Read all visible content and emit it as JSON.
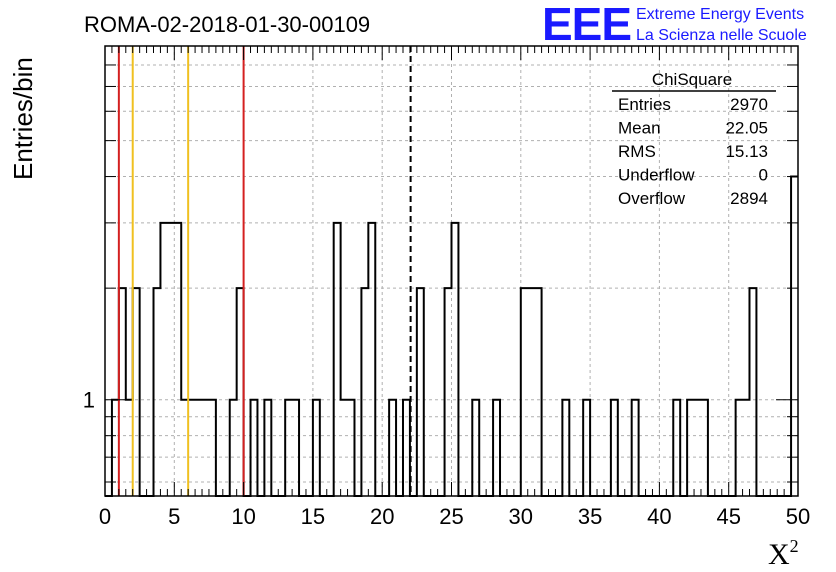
{
  "chart_data": {
    "type": "histogram",
    "title": "ROMA-02-2018-01-30-00109",
    "xlabel": "X",
    "xlabel_superscript": "2",
    "ylabel": "Entries/bin",
    "xlim": [
      0,
      50
    ],
    "ylim": [
      0.55,
      9
    ],
    "yscale": "log",
    "grid": true,
    "bin_width": 0.5,
    "x_ticks": [
      "0",
      "5",
      "10",
      "15",
      "20",
      "25",
      "30",
      "35",
      "40",
      "45",
      "50"
    ],
    "y_ticks": [
      "1"
    ],
    "bins": [
      [
        0.5,
        1
      ],
      [
        1.0,
        2
      ],
      [
        1.5,
        1
      ],
      [
        2.0,
        2
      ],
      [
        3.5,
        2
      ],
      [
        4.0,
        3
      ],
      [
        4.5,
        3
      ],
      [
        5.0,
        3
      ],
      [
        5.5,
        1
      ],
      [
        6.0,
        1
      ],
      [
        6.5,
        1
      ],
      [
        7.0,
        1
      ],
      [
        7.5,
        1
      ],
      [
        9.0,
        1
      ],
      [
        9.5,
        2
      ],
      [
        10.5,
        1
      ],
      [
        11.5,
        1
      ],
      [
        13.0,
        1
      ],
      [
        13.5,
        1
      ],
      [
        15.0,
        1
      ],
      [
        16.5,
        3
      ],
      [
        17.0,
        1
      ],
      [
        17.5,
        1
      ],
      [
        18.5,
        2
      ],
      [
        19.0,
        3
      ],
      [
        20.5,
        1
      ],
      [
        21.5,
        1
      ],
      [
        22.5,
        2
      ],
      [
        24.5,
        2
      ],
      [
        25.0,
        3
      ],
      [
        26.5,
        1
      ],
      [
        28.0,
        1
      ],
      [
        30.0,
        2
      ],
      [
        30.5,
        2
      ],
      [
        31.0,
        2
      ],
      [
        33.0,
        1
      ],
      [
        34.5,
        1
      ],
      [
        36.5,
        1
      ],
      [
        38.0,
        1
      ],
      [
        41.0,
        1
      ],
      [
        42.0,
        1
      ],
      [
        42.5,
        1
      ],
      [
        43.0,
        1
      ],
      [
        45.5,
        1
      ],
      [
        46.0,
        1
      ],
      [
        46.5,
        2
      ],
      [
        49.5,
        4
      ]
    ],
    "vertical_lines": [
      {
        "x": 1.0,
        "color": "#d42020",
        "style": "solid"
      },
      {
        "x": 2.0,
        "color": "#f0c020",
        "style": "solid"
      },
      {
        "x": 6.0,
        "color": "#f0c020",
        "style": "solid"
      },
      {
        "x": 10.0,
        "color": "#d42020",
        "style": "solid"
      },
      {
        "x": 22.05,
        "color": "#000000",
        "style": "dashed"
      }
    ],
    "stats": {
      "name": "ChiSquare",
      "rows": [
        {
          "label": "Entries",
          "value": "2970"
        },
        {
          "label": "Mean",
          "value": "22.05"
        },
        {
          "label": "RMS",
          "value": "15.13"
        },
        {
          "label": "Underflow",
          "value": "0"
        },
        {
          "label": "Overflow",
          "value": "2894"
        }
      ]
    }
  },
  "logo": {
    "text": "EEE",
    "line1": "Extreme Energy Events",
    "line2": "La Scienza nelle Scuole",
    "color": "#1a1aff"
  }
}
